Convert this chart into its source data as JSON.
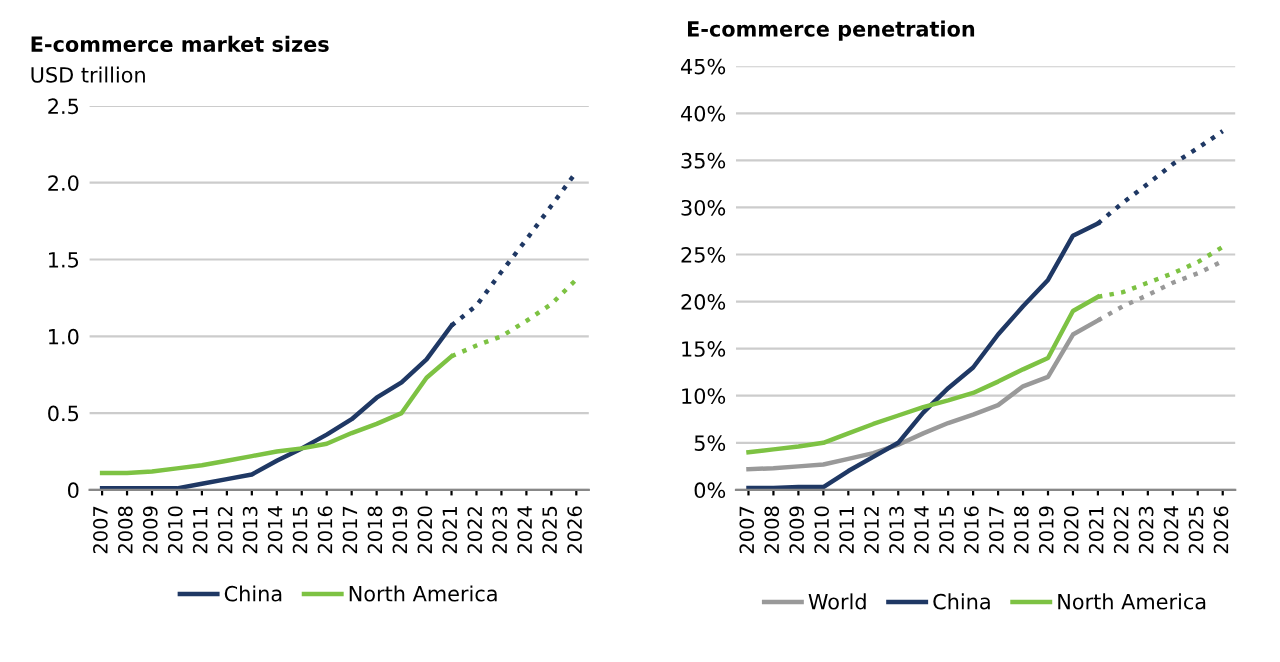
{
  "chart_data": [
    {
      "type": "line",
      "title": "E-commerce market sizes",
      "ylabel": "USD trillion",
      "categories": [
        "2007",
        "2008",
        "2009",
        "2010",
        "2011",
        "2012",
        "2013",
        "2014",
        "2015",
        "2016",
        "2017",
        "2018",
        "2019",
        "2020",
        "2021",
        "2022",
        "2023",
        "2024",
        "2025",
        "2026"
      ],
      "series": [
        {
          "name": "China",
          "color": "#1f3864",
          "line_style": "solid",
          "values": [
            0.01,
            0.01,
            0.01,
            0.01,
            0.04,
            0.07,
            0.1,
            0.19,
            0.27,
            0.36,
            0.46,
            0.6,
            0.7,
            0.85,
            1.07,
            null,
            null,
            null,
            null,
            null
          ]
        },
        {
          "name": "North America",
          "color": "#7dc243",
          "line_style": "solid",
          "values": [
            0.11,
            0.11,
            0.12,
            0.14,
            0.16,
            0.19,
            0.22,
            0.25,
            0.27,
            0.3,
            0.37,
            0.43,
            0.5,
            0.73,
            0.87,
            null,
            null,
            null,
            null,
            null
          ]
        },
        {
          "color": "#1f3864",
          "line_style": "dotted",
          "values": [
            null,
            null,
            null,
            null,
            null,
            null,
            null,
            null,
            null,
            null,
            null,
            null,
            null,
            null,
            1.07,
            1.2,
            1.42,
            1.63,
            1.85,
            2.07
          ]
        },
        {
          "color": "#7dc243",
          "line_style": "dotted",
          "values": [
            null,
            null,
            null,
            null,
            null,
            null,
            null,
            null,
            null,
            null,
            null,
            null,
            null,
            null,
            0.87,
            0.94,
            1.0,
            1.1,
            1.21,
            1.37
          ]
        }
      ],
      "ylim": [
        0,
        2.5
      ],
      "yticks": [
        0,
        0.5,
        {
          "value": 1,
          "label": "1.0"
        },
        1.5,
        {
          "value": 2,
          "label": "2.0"
        },
        2.5
      ],
      "grid": "y",
      "legend": "bottom",
      "marker": "none"
    },
    {
      "type": "line",
      "title": "E-commerce penetration",
      "categories": [
        "2007",
        "2008",
        "2009",
        "2010",
        "2011",
        "2012",
        "2013",
        "2014",
        "2015",
        "2016",
        "2017",
        "2018",
        "2019",
        "2020",
        "2021",
        "2022",
        "2023",
        "2024",
        "2025",
        "2026"
      ],
      "series": [
        {
          "name": "World",
          "color": "#999999",
          "line_style": "solid",
          "values": [
            2.2,
            2.3,
            2.5,
            2.7,
            3.3,
            3.9,
            4.8,
            6,
            7.1,
            8,
            9,
            11,
            12,
            16.5,
            18,
            null,
            null,
            null,
            null,
            null
          ]
        },
        {
          "name": "China",
          "color": "#1f3864",
          "line_style": "solid",
          "values": [
            0.2,
            0.2,
            0.3,
            0.3,
            2,
            3.5,
            5,
            8.2,
            10.8,
            13,
            16.5,
            19.5,
            22.3,
            27,
            28.3,
            null,
            null,
            null,
            null,
            null
          ]
        },
        {
          "name": "North America",
          "color": "#7dc243",
          "line_style": "solid",
          "values": [
            4,
            4.3,
            4.6,
            5,
            6,
            7,
            7.9,
            8.8,
            9.5,
            10.3,
            11.5,
            12.8,
            14,
            19,
            20.5,
            null,
            null,
            null,
            null,
            null
          ]
        },
        {
          "color": "#999999",
          "line_style": "dotted",
          "values": [
            null,
            null,
            null,
            null,
            null,
            null,
            null,
            null,
            null,
            null,
            null,
            null,
            null,
            null,
            18,
            19.5,
            20.7,
            22,
            23,
            24.3
          ]
        },
        {
          "color": "#1f3864",
          "line_style": "dotted",
          "values": [
            null,
            null,
            null,
            null,
            null,
            null,
            null,
            null,
            null,
            null,
            null,
            null,
            null,
            null,
            28.3,
            30.5,
            32.5,
            34.6,
            36.3,
            38.1
          ]
        },
        {
          "color": "#7dc243",
          "line_style": "dotted",
          "values": [
            null,
            null,
            null,
            null,
            null,
            null,
            null,
            null,
            null,
            null,
            null,
            null,
            null,
            null,
            20.5,
            21,
            22,
            23,
            24.2,
            25.8
          ]
        }
      ],
      "ylim": [
        0,
        45
      ],
      "yticks": [
        {
          "value": 0,
          "label": "0%"
        },
        {
          "value": 5,
          "label": "5%"
        },
        {
          "value": 10,
          "label": "10%"
        },
        {
          "value": 15,
          "label": "15%"
        },
        {
          "value": 20,
          "label": "20%"
        },
        {
          "value": 25,
          "label": "25%"
        },
        {
          "value": 30,
          "label": "30%"
        },
        {
          "value": 35,
          "label": "35%"
        },
        {
          "value": 40,
          "label": "40%"
        },
        {
          "value": 45,
          "label": "45%"
        }
      ],
      "grid": "y",
      "legend": "bottom",
      "marker": "none"
    }
  ]
}
